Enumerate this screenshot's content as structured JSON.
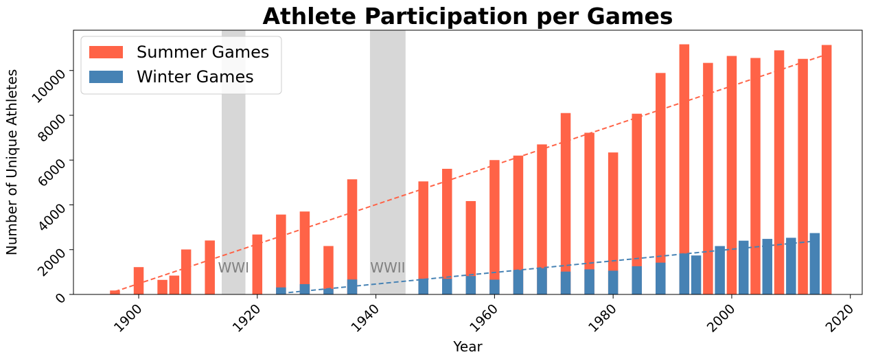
{
  "chart_data": {
    "type": "bar",
    "title": "Athlete Participation per Games",
    "xlabel": "Year",
    "ylabel": "Number of Unique Athletes",
    "xlim": [
      1889,
      2022
    ],
    "ylim": [
      0,
      11800
    ],
    "x_ticks": [
      1900,
      1920,
      1940,
      1960,
      1980,
      2000,
      2020
    ],
    "y_ticks": [
      0,
      2000,
      4000,
      6000,
      8000,
      10000
    ],
    "grid": false,
    "legend_position": "top-left",
    "colors": {
      "summer": "#ff6347",
      "winter": "#4682b4",
      "band": "#d3d3d3",
      "band_text": "#808080"
    },
    "series": [
      {
        "name": "Summer Games",
        "color": "#ff6347",
        "x": [
          1896,
          1900,
          1904,
          1906,
          1908,
          1912,
          1920,
          1924,
          1928,
          1932,
          1936,
          1948,
          1952,
          1956,
          1960,
          1964,
          1968,
          1972,
          1976,
          1980,
          1984,
          1988,
          1992,
          1996,
          2000,
          2004,
          2008,
          2012,
          2016
        ],
        "values": [
          176,
          1220,
          650,
          841,
          2008,
          2409,
          2676,
          3567,
          3703,
          2162,
          5141,
          5048,
          5610,
          4169,
          6000,
          6200,
          6700,
          8100,
          7220,
          6340,
          8070,
          9890,
          11170,
          10340,
          10650,
          10560,
          10900,
          10520,
          11140
        ]
      },
      {
        "name": "Winter Games",
        "color": "#4682b4",
        "x": [
          1924,
          1928,
          1932,
          1936,
          1948,
          1952,
          1956,
          1960,
          1964,
          1968,
          1972,
          1976,
          1980,
          1984,
          1988,
          1992,
          1994,
          1998,
          2002,
          2006,
          2010,
          2014
        ],
        "values": [
          313,
          460,
          252,
          668,
          700,
          700,
          820,
          660,
          1090,
          1170,
          1020,
          1120,
          1060,
          1260,
          1420,
          1830,
          1740,
          2160,
          2400,
          2480,
          2530,
          2740
        ]
      }
    ],
    "trendlines": [
      {
        "series": "Summer Games",
        "x": [
          1896,
          2016
        ],
        "y": [
          130,
          10720
        ]
      },
      {
        "series": "Winter Games",
        "x": [
          1924,
          2014
        ],
        "y": [
          50,
          2380
        ]
      }
    ],
    "shaded_regions": [
      {
        "label": "WWI",
        "x": [
          1914,
          1918
        ]
      },
      {
        "label": "WWII",
        "x": [
          1939,
          1945
        ]
      }
    ]
  }
}
